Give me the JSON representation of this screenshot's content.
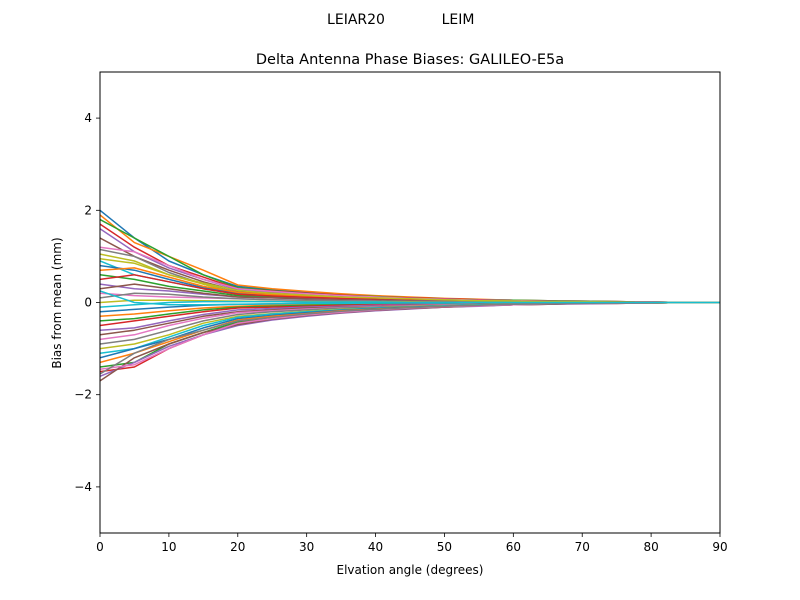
{
  "suptitle": {
    "receiver": "LEIAR20",
    "radome": "LEIM"
  },
  "chart_data": {
    "type": "line",
    "title": "Delta Antenna Phase Biases: GALILEO-E5a",
    "xlabel": "Elvation angle (degrees)",
    "ylabel": "Bias from mean (mm)",
    "xlim": [
      0,
      90
    ],
    "ylim": [
      -5,
      5
    ],
    "xticks": [
      0,
      10,
      20,
      30,
      40,
      50,
      60,
      70,
      80,
      90
    ],
    "yticks": [
      -4,
      -2,
      0,
      2,
      4
    ],
    "ytick_labels": [
      "−4",
      "−2",
      "0",
      "2",
      "4"
    ],
    "grid": false,
    "x": [
      0,
      5,
      10,
      15,
      20,
      25,
      30,
      35,
      40,
      45,
      50,
      55,
      60,
      65,
      70,
      75,
      80,
      85,
      90
    ],
    "series_colors": [
      "#1f77b4",
      "#ff7f0e",
      "#2ca02c",
      "#d62728",
      "#9467bd",
      "#8c564b",
      "#e377c2",
      "#7f7f7f",
      "#bcbd22",
      "#17becf"
    ],
    "series": [
      {
        "values": [
          2.0,
          1.4,
          0.9,
          0.6,
          0.35,
          0.28,
          0.22,
          0.18,
          0.14,
          0.11,
          0.08,
          0.06,
          0.05,
          0.04,
          0.03,
          0.02,
          0.01,
          0.0,
          0.0
        ]
      },
      {
        "values": [
          1.9,
          1.3,
          1.0,
          0.7,
          0.38,
          0.3,
          0.24,
          0.19,
          0.15,
          0.12,
          0.09,
          0.07,
          0.05,
          0.04,
          0.03,
          0.02,
          0.01,
          0.0,
          0.0
        ]
      },
      {
        "values": [
          1.8,
          1.4,
          1.0,
          0.6,
          0.32,
          0.26,
          0.2,
          0.16,
          0.13,
          0.1,
          0.08,
          0.06,
          0.05,
          0.04,
          0.03,
          0.02,
          0.01,
          0.0,
          0.0
        ]
      },
      {
        "values": [
          1.7,
          1.2,
          0.8,
          0.55,
          0.3,
          0.25,
          0.2,
          0.16,
          0.12,
          0.1,
          0.08,
          0.06,
          0.04,
          0.03,
          0.02,
          0.02,
          0.01,
          0.0,
          0.0
        ]
      },
      {
        "values": [
          1.6,
          1.1,
          0.75,
          0.5,
          0.28,
          0.22,
          0.18,
          0.14,
          0.11,
          0.09,
          0.07,
          0.05,
          0.04,
          0.03,
          0.02,
          0.01,
          0.01,
          0.0,
          0.0
        ]
      },
      {
        "values": [
          1.4,
          1.0,
          0.7,
          0.45,
          0.25,
          0.2,
          0.16,
          0.13,
          0.1,
          0.08,
          0.06,
          0.05,
          0.04,
          0.03,
          0.02,
          0.01,
          0.01,
          0.0,
          0.0
        ]
      },
      {
        "values": [
          1.2,
          1.1,
          0.8,
          0.5,
          0.3,
          0.24,
          0.19,
          0.15,
          0.12,
          0.09,
          0.07,
          0.05,
          0.04,
          0.03,
          0.02,
          0.01,
          0.01,
          0.0,
          0.0
        ]
      },
      {
        "values": [
          1.15,
          1.0,
          0.65,
          0.4,
          0.22,
          0.18,
          0.15,
          0.12,
          0.09,
          0.07,
          0.06,
          0.04,
          0.03,
          0.02,
          0.02,
          0.01,
          0.0,
          0.0,
          0.0
        ]
      },
      {
        "values": [
          1.05,
          0.9,
          0.6,
          0.4,
          0.2,
          0.17,
          0.14,
          0.11,
          0.09,
          0.07,
          0.05,
          0.04,
          0.03,
          0.02,
          0.01,
          0.01,
          0.0,
          0.0,
          0.0
        ]
      },
      {
        "values": [
          0.9,
          0.6,
          0.45,
          0.3,
          0.18,
          0.15,
          0.12,
          0.1,
          0.08,
          0.06,
          0.05,
          0.04,
          0.03,
          0.02,
          0.01,
          0.01,
          0.0,
          0.0,
          0.0
        ]
      },
      {
        "values": [
          0.8,
          0.7,
          0.5,
          0.32,
          0.2,
          0.16,
          0.13,
          0.1,
          0.08,
          0.06,
          0.05,
          0.04,
          0.03,
          0.02,
          0.01,
          0.01,
          0.0,
          0.0,
          0.0
        ]
      },
      {
        "values": [
          0.7,
          0.75,
          0.55,
          0.35,
          0.22,
          0.17,
          0.14,
          0.11,
          0.08,
          0.06,
          0.05,
          0.04,
          0.03,
          0.02,
          0.01,
          0.01,
          0.0,
          0.0,
          0.0
        ]
      },
      {
        "values": [
          0.6,
          0.5,
          0.35,
          0.25,
          0.15,
          0.12,
          0.1,
          0.08,
          0.06,
          0.05,
          0.04,
          0.03,
          0.02,
          0.02,
          0.01,
          0.01,
          0.0,
          0.0,
          0.0
        ]
      },
      {
        "values": [
          0.5,
          0.6,
          0.45,
          0.3,
          0.18,
          0.14,
          0.11,
          0.09,
          0.07,
          0.05,
          0.04,
          0.03,
          0.02,
          0.02,
          0.01,
          0.01,
          0.0,
          0.0,
          0.0
        ]
      },
      {
        "values": [
          0.4,
          0.3,
          0.25,
          0.18,
          0.12,
          0.1,
          0.08,
          0.06,
          0.05,
          0.04,
          0.03,
          0.02,
          0.02,
          0.01,
          0.01,
          0.0,
          0.0,
          0.0,
          0.0
        ]
      },
      {
        "values": [
          0.3,
          0.4,
          0.3,
          0.2,
          0.12,
          0.1,
          0.08,
          0.06,
          0.05,
          0.04,
          0.03,
          0.02,
          0.02,
          0.01,
          0.01,
          0.0,
          0.0,
          0.0,
          0.0
        ]
      },
      {
        "values": [
          0.2,
          0.15,
          0.12,
          0.1,
          0.08,
          0.06,
          0.05,
          0.04,
          0.03,
          0.02,
          0.02,
          0.01,
          0.01,
          0.01,
          0.0,
          0.0,
          0.0,
          0.0,
          0.0
        ]
      },
      {
        "values": [
          0.1,
          0.2,
          0.18,
          0.12,
          0.08,
          0.06,
          0.05,
          0.04,
          0.03,
          0.02,
          0.02,
          0.01,
          0.01,
          0.0,
          0.0,
          0.0,
          0.0,
          0.0,
          0.0
        ]
      },
      {
        "values": [
          0.0,
          0.05,
          0.05,
          0.04,
          0.03,
          0.02,
          0.02,
          0.01,
          0.01,
          0.01,
          0.0,
          0.0,
          0.0,
          0.0,
          0.0,
          0.0,
          0.0,
          0.0,
          0.0
        ]
      },
      {
        "values": [
          -0.1,
          -0.05,
          0.0,
          0.02,
          0.02,
          0.02,
          0.01,
          0.01,
          0.01,
          0.0,
          0.0,
          0.0,
          0.0,
          0.0,
          0.0,
          0.0,
          0.0,
          0.0,
          0.0
        ]
      },
      {
        "values": [
          -0.2,
          -0.15,
          -0.1,
          -0.06,
          -0.04,
          -0.03,
          -0.02,
          -0.02,
          -0.01,
          -0.01,
          -0.01,
          0.0,
          0.0,
          0.0,
          0.0,
          0.0,
          0.0,
          0.0,
          0.0
        ]
      },
      {
        "values": [
          -0.3,
          -0.25,
          -0.18,
          -0.12,
          -0.08,
          -0.06,
          -0.05,
          -0.04,
          -0.03,
          -0.02,
          -0.02,
          -0.01,
          -0.01,
          0.0,
          0.0,
          0.0,
          0.0,
          0.0,
          0.0
        ]
      },
      {
        "values": [
          -0.4,
          -0.35,
          -0.25,
          -0.16,
          -0.1,
          -0.08,
          -0.06,
          -0.05,
          -0.04,
          -0.03,
          -0.02,
          -0.02,
          -0.01,
          -0.01,
          0.0,
          0.0,
          0.0,
          0.0,
          0.0
        ]
      },
      {
        "values": [
          -0.5,
          -0.4,
          -0.3,
          -0.2,
          -0.12,
          -0.1,
          -0.08,
          -0.06,
          -0.05,
          -0.04,
          -0.03,
          -0.02,
          -0.02,
          -0.01,
          -0.01,
          0.0,
          0.0,
          0.0,
          0.0
        ]
      },
      {
        "values": [
          -0.6,
          -0.55,
          -0.4,
          -0.26,
          -0.16,
          -0.13,
          -0.1,
          -0.08,
          -0.06,
          -0.05,
          -0.04,
          -0.03,
          -0.02,
          -0.01,
          -0.01,
          0.0,
          0.0,
          0.0,
          0.0
        ]
      },
      {
        "values": [
          -0.7,
          -0.6,
          -0.45,
          -0.3,
          -0.2,
          -0.16,
          -0.12,
          -0.1,
          -0.08,
          -0.06,
          -0.04,
          -0.03,
          -0.02,
          -0.02,
          -0.01,
          -0.01,
          0.0,
          0.0,
          0.0
        ]
      },
      {
        "values": [
          -0.8,
          -0.7,
          -0.5,
          -0.34,
          -0.22,
          -0.18,
          -0.14,
          -0.11,
          -0.09,
          -0.07,
          -0.05,
          -0.04,
          -0.03,
          -0.02,
          -0.01,
          -0.01,
          0.0,
          0.0,
          0.0
        ]
      },
      {
        "values": [
          -0.9,
          -0.8,
          -0.6,
          -0.4,
          -0.26,
          -0.2,
          -0.16,
          -0.12,
          -0.1,
          -0.08,
          -0.06,
          -0.04,
          -0.03,
          -0.02,
          -0.02,
          -0.01,
          0.0,
          0.0,
          0.0
        ]
      },
      {
        "values": [
          -1.0,
          -0.9,
          -0.7,
          -0.45,
          -0.3,
          -0.24,
          -0.19,
          -0.15,
          -0.12,
          -0.09,
          -0.07,
          -0.05,
          -0.04,
          -0.03,
          -0.02,
          -0.01,
          -0.01,
          0.0,
          0.0
        ]
      },
      {
        "values": [
          -1.1,
          -1.0,
          -0.75,
          -0.5,
          -0.32,
          -0.25,
          -0.2,
          -0.16,
          -0.12,
          -0.1,
          -0.07,
          -0.05,
          -0.04,
          -0.03,
          -0.02,
          -0.01,
          -0.01,
          0.0,
          0.0
        ]
      },
      {
        "values": [
          -1.2,
          -1.0,
          -0.8,
          -0.55,
          -0.35,
          -0.28,
          -0.22,
          -0.17,
          -0.13,
          -0.1,
          -0.08,
          -0.06,
          -0.04,
          -0.03,
          -0.02,
          -0.01,
          -0.01,
          0.0,
          0.0
        ]
      },
      {
        "values": [
          -1.3,
          -1.1,
          -0.85,
          -0.6,
          -0.38,
          -0.3,
          -0.24,
          -0.18,
          -0.14,
          -0.11,
          -0.08,
          -0.06,
          -0.04,
          -0.03,
          -0.02,
          -0.01,
          -0.01,
          0.0,
          0.0
        ]
      },
      {
        "values": [
          -1.4,
          -1.3,
          -0.9,
          -0.65,
          -0.42,
          -0.33,
          -0.26,
          -0.2,
          -0.15,
          -0.12,
          -0.09,
          -0.07,
          -0.05,
          -0.03,
          -0.02,
          -0.01,
          -0.01,
          0.0,
          0.0
        ]
      },
      {
        "values": [
          -1.5,
          -1.4,
          -1.0,
          -0.7,
          -0.45,
          -0.35,
          -0.28,
          -0.22,
          -0.17,
          -0.13,
          -0.1,
          -0.07,
          -0.05,
          -0.04,
          -0.02,
          -0.02,
          -0.01,
          0.0,
          0.0
        ]
      },
      {
        "values": [
          -1.6,
          -1.3,
          -0.95,
          -0.7,
          -0.5,
          -0.38,
          -0.3,
          -0.23,
          -0.18,
          -0.14,
          -0.1,
          -0.08,
          -0.05,
          -0.04,
          -0.03,
          -0.02,
          -0.01,
          0.0,
          0.0
        ]
      },
      {
        "values": [
          -1.7,
          -1.2,
          -0.9,
          -0.65,
          -0.48,
          -0.36,
          -0.28,
          -0.22,
          -0.17,
          -0.13,
          -0.1,
          -0.07,
          -0.05,
          -0.04,
          -0.02,
          -0.02,
          -0.01,
          0.0,
          0.0
        ]
      },
      {
        "values": [
          -1.45,
          -1.35,
          -1.0,
          -0.7,
          -0.45,
          -0.35,
          -0.27,
          -0.21,
          -0.16,
          -0.12,
          -0.09,
          -0.07,
          -0.05,
          -0.03,
          -0.02,
          -0.01,
          -0.01,
          0.0,
          0.0
        ]
      },
      {
        "values": [
          -1.55,
          -1.1,
          -0.8,
          -0.6,
          -0.4,
          -0.32,
          -0.25,
          -0.19,
          -0.15,
          -0.11,
          -0.08,
          -0.06,
          -0.04,
          -0.03,
          -0.02,
          -0.01,
          -0.01,
          0.0,
          0.0
        ]
      },
      {
        "values": [
          0.95,
          0.85,
          0.6,
          0.42,
          0.26,
          0.2,
          0.16,
          0.12,
          0.1,
          0.08,
          0.06,
          0.04,
          0.03,
          0.02,
          0.02,
          0.01,
          0.0,
          0.0,
          0.0
        ]
      },
      {
        "values": [
          0.25,
          0.0,
          -0.05,
          -0.05,
          -0.04,
          -0.03,
          -0.02,
          -0.02,
          -0.01,
          -0.01,
          -0.01,
          0.0,
          0.0,
          0.0,
          0.0,
          0.0,
          0.0,
          0.0,
          0.0
        ]
      }
    ]
  }
}
